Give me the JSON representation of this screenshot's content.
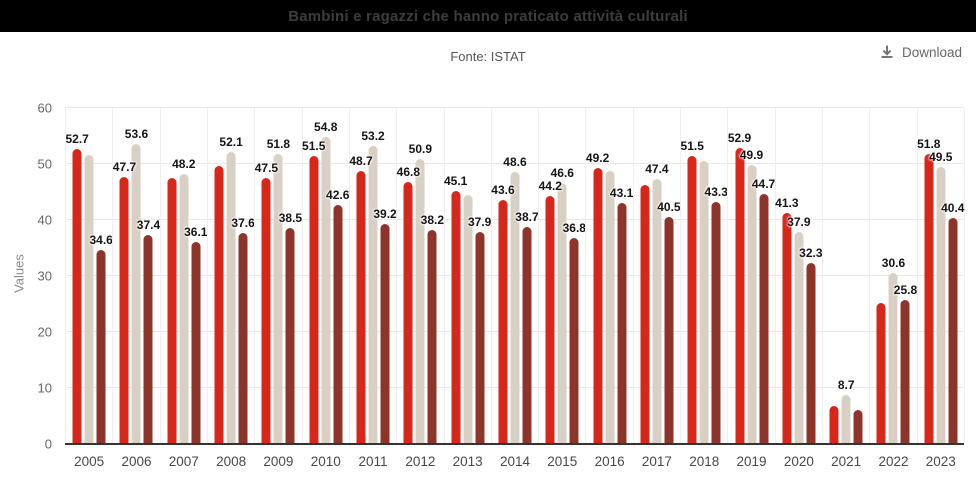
{
  "header": {
    "title": "Bambini e ragazzi che hanno praticato attività culturali"
  },
  "subheader": {
    "source": "Fonte: ISTAT"
  },
  "toolbar": {
    "download_label": "Download"
  },
  "colors": {
    "titlebar_bg": "#000000",
    "title_text": "#3d3d3d",
    "series_red": "#d7271b",
    "series_beige": "#d8d0c4",
    "series_dark": "#8d352b",
    "gridline": "#e7e7e7",
    "axis_line": "#333333",
    "value_label_text": "#141414",
    "tick_text": "#666666",
    "year_text": "#484848",
    "download_text": "#666666"
  },
  "chart_data": {
    "type": "bar",
    "title": "Bambini e ragazzi che hanno praticato attività culturali",
    "subtitle": "Fonte: ISTAT",
    "xlabel": "",
    "ylabel": "Values",
    "ylim": [
      0,
      60
    ],
    "yticks": [
      0,
      10,
      20,
      30,
      40,
      50,
      60
    ],
    "grid": true,
    "legend": false,
    "categories": [
      "2005",
      "2006",
      "2007",
      "2008",
      "2009",
      "2010",
      "2011",
      "2012",
      "2013",
      "2014",
      "2015",
      "2016",
      "2017",
      "2018",
      "2019",
      "2020",
      "2021",
      "2022",
      "2023"
    ],
    "series": [
      {
        "name": "series_1",
        "color": "#d7271b",
        "values": [
          52.7,
          47.7,
          47.5,
          49.6,
          47.5,
          51.5,
          48.7,
          46.8,
          45.1,
          43.6,
          44.2,
          49.2,
          46.2,
          51.5,
          52.9,
          41.3,
          6.8,
          25.2,
          51.8
        ],
        "labels_shown": [
          true,
          true,
          false,
          false,
          true,
          true,
          true,
          true,
          true,
          true,
          true,
          true,
          false,
          true,
          true,
          true,
          false,
          false,
          true
        ]
      },
      {
        "name": "series_2",
        "color": "#d8d0c4",
        "values": [
          51.6,
          53.6,
          48.2,
          52.1,
          51.8,
          54.8,
          53.2,
          50.9,
          44.5,
          48.6,
          46.6,
          48.8,
          47.4,
          50.5,
          49.9,
          37.9,
          8.7,
          30.6,
          49.5
        ],
        "labels_shown": [
          false,
          true,
          true,
          true,
          true,
          true,
          true,
          true,
          false,
          true,
          true,
          false,
          true,
          false,
          true,
          true,
          true,
          true,
          true
        ]
      },
      {
        "name": "series_3",
        "color": "#8d352b",
        "values": [
          34.6,
          37.4,
          36.1,
          37.6,
          38.5,
          42.6,
          39.2,
          38.2,
          37.9,
          38.7,
          36.8,
          43.1,
          40.5,
          43.3,
          44.7,
          32.3,
          6.1,
          25.8,
          40.4
        ],
        "labels_shown": [
          true,
          true,
          true,
          true,
          true,
          true,
          true,
          true,
          true,
          true,
          true,
          true,
          true,
          true,
          true,
          true,
          false,
          true,
          true
        ]
      }
    ]
  }
}
